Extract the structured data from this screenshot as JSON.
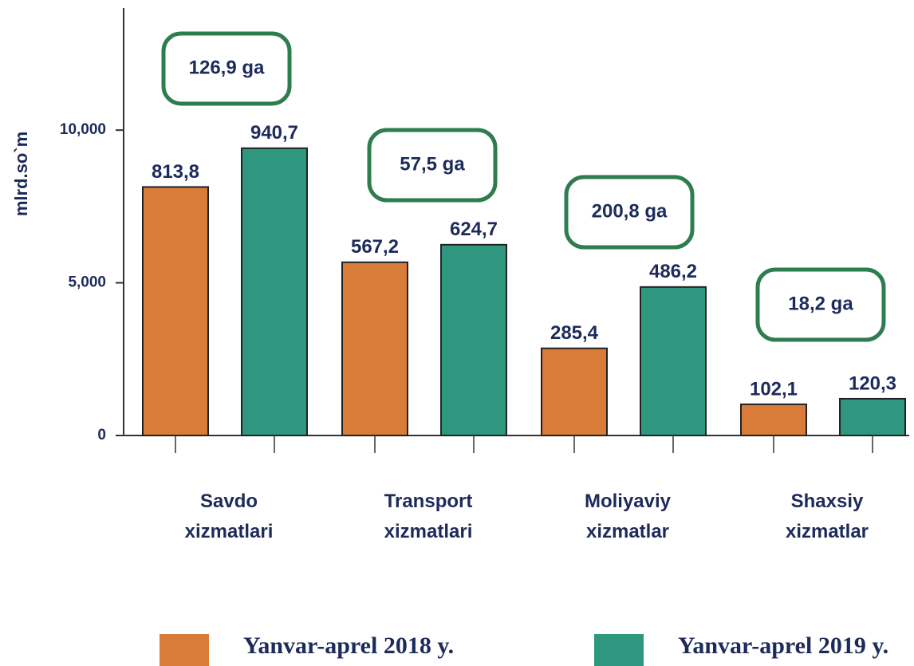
{
  "chart_data": {
    "type": "bar",
    "y_label": "mlrd.so`m",
    "categories": [
      "Savdo xizmatlari",
      "Transport xizmatlari",
      "Moliyaviy xizmatlar",
      "Shaxsiy xizmatlar"
    ],
    "series": [
      {
        "name": "Yanvar-aprel 2018 y.",
        "color": "#d97c3a",
        "values": [
          8138,
          5672,
          2854,
          1021
        ],
        "value_labels": [
          "813,8",
          "567,2",
          "285,4",
          "102,1"
        ]
      },
      {
        "name": "Yanvar-aprel 2019 y.",
        "color": "#2f9680",
        "values": [
          9407,
          6247,
          4862,
          1203
        ],
        "value_labels": [
          "940,7",
          "624,7",
          "486,2",
          "120,3"
        ]
      }
    ],
    "annotations": [
      "126,9 ga",
      "57,5 ga",
      "200,8 ga",
      "18,2 ga"
    ],
    "ylim": [
      0,
      14000
    ],
    "yticks": [
      0,
      {
        "value": 5000,
        "label": "5,000"
      },
      {
        "value": 10000,
        "label": "10,000"
      }
    ],
    "legend": "bottom"
  }
}
